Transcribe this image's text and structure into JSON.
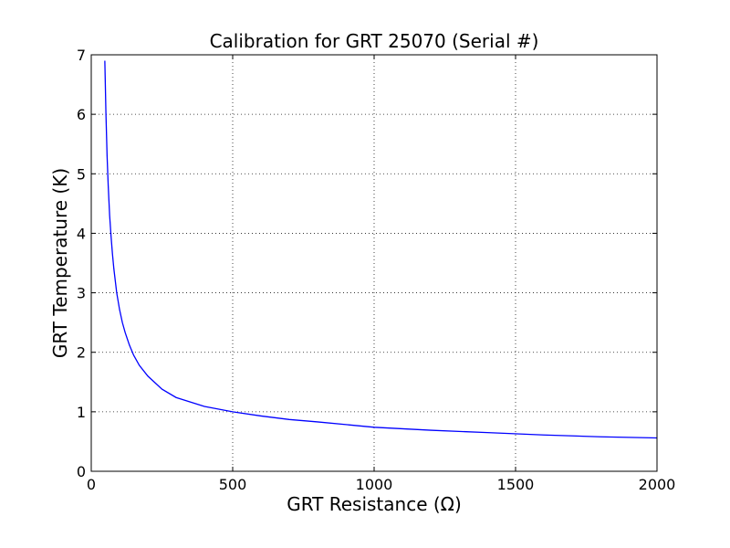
{
  "chart_data": {
    "type": "line",
    "title": "Calibration for GRT 25070 (Serial #)",
    "xlabel": "GRT Resistance (Ω)",
    "ylabel": "GRT Temperature (K)",
    "xlim": [
      0,
      2000
    ],
    "ylim": [
      0,
      7
    ],
    "xticks": [
      0,
      500,
      1000,
      1500,
      2000
    ],
    "yticks": [
      0,
      1,
      2,
      3,
      4,
      5,
      6,
      7
    ],
    "xtick_labels": [
      "0",
      "500",
      "1000",
      "1500",
      "2000"
    ],
    "ytick_labels": [
      "0",
      "1",
      "2",
      "3",
      "4",
      "5",
      "6",
      "7"
    ],
    "grid": true,
    "series": [
      {
        "color": "#0000ff",
        "x": [
          48,
          52,
          56,
          60,
          65,
          70,
          75,
          80,
          85,
          90,
          100,
          110,
          120,
          135,
          150,
          170,
          200,
          250,
          300,
          400,
          500,
          600,
          700,
          800,
          1000,
          1200,
          1400,
          1600,
          1800,
          2000
        ],
        "y": [
          6.9,
          6.0,
          5.3,
          4.8,
          4.3,
          3.95,
          3.65,
          3.4,
          3.2,
          3.0,
          2.72,
          2.5,
          2.33,
          2.12,
          1.95,
          1.78,
          1.6,
          1.38,
          1.24,
          1.09,
          1.0,
          0.93,
          0.87,
          0.83,
          0.74,
          0.69,
          0.65,
          0.61,
          0.58,
          0.56
        ]
      }
    ]
  }
}
